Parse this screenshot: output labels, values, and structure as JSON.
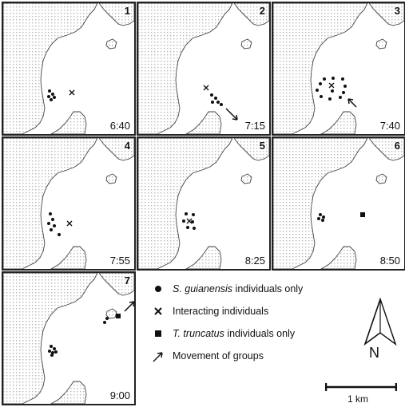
{
  "colors": {
    "land": "#b8b8b8",
    "coast": "#444444",
    "marks": "#111111",
    "border": "#222222"
  },
  "panels": [
    {
      "number": "1",
      "time": "6:40",
      "sotalia": [
        [
          58,
          110
        ],
        [
          62,
          114
        ],
        [
          57,
          117
        ],
        [
          64,
          118
        ],
        [
          60,
          121
        ]
      ],
      "interacting": [
        [
          86,
          112
        ]
      ],
      "tursiops": [],
      "arrow": null
    },
    {
      "number": "2",
      "time": "7:15",
      "sotalia": [
        [
          92,
          115
        ],
        [
          97,
          119
        ],
        [
          93,
          124
        ],
        [
          100,
          124
        ],
        [
          104,
          127
        ]
      ],
      "interacting": [
        [
          85,
          106
        ]
      ],
      "tursiops": [],
      "arrow": "down-right"
    },
    {
      "number": "3",
      "time": "7:40",
      "sotalia": [
        [
          64,
          95
        ],
        [
          75,
          94
        ],
        [
          87,
          95
        ],
        [
          59,
          101
        ],
        [
          90,
          104
        ],
        [
          55,
          109
        ],
        [
          74,
          110
        ],
        [
          88,
          112
        ],
        [
          60,
          117
        ],
        [
          71,
          120
        ],
        [
          84,
          118
        ]
      ],
      "interacting": [
        [
          73,
          103
        ]
      ],
      "tursiops": [],
      "arrow": "up-left"
    },
    {
      "number": "4",
      "time": "7:55",
      "sotalia": [
        [
          59,
          95
        ],
        [
          62,
          102
        ],
        [
          57,
          107
        ],
        [
          64,
          110
        ],
        [
          60,
          115
        ],
        [
          70,
          121
        ]
      ],
      "interacting": [
        [
          83,
          107
        ]
      ],
      "tursiops": [],
      "arrow": null
    },
    {
      "number": "5",
      "time": "8:25",
      "sotalia": [
        [
          60,
          95
        ],
        [
          69,
          96
        ],
        [
          57,
          104
        ],
        [
          68,
          105
        ],
        [
          62,
          112
        ],
        [
          70,
          113
        ]
      ],
      "interacting": [
        [
          64,
          104
        ]
      ],
      "tursiops": [],
      "arrow": null
    },
    {
      "number": "6",
      "time": "8:50",
      "sotalia": [
        [
          59,
          96
        ],
        [
          63,
          99
        ],
        [
          57,
          101
        ],
        [
          62,
          103
        ]
      ],
      "interacting": [],
      "tursiops": [
        [
          112,
          96
        ]
      ],
      "arrow": null
    },
    {
      "number": "7",
      "time": "9:00",
      "sotalia": [
        [
          60,
          92
        ],
        [
          64,
          95
        ],
        [
          58,
          98
        ],
        [
          62,
          100
        ],
        [
          66,
          99
        ],
        [
          61,
          103
        ]
      ],
      "interacting": [],
      "tursiops": [
        [
          144,
          54
        ]
      ],
      "extra_sotalia": [
        [
          130,
          57
        ],
        [
          127,
          62
        ]
      ],
      "arrow": "up-right"
    }
  ],
  "legend": {
    "items": [
      {
        "symbol": "dot",
        "label_italic": "S. guianensis",
        "label_rest": " individuals only"
      },
      {
        "symbol": "cross",
        "label_italic": "",
        "label_rest": "Interacting individuals"
      },
      {
        "symbol": "square",
        "label_italic": "T. truncatus",
        "label_rest": " individuals only"
      },
      {
        "symbol": "arrow",
        "label_italic": "",
        "label_rest": "Movement of groups"
      }
    ],
    "north_label": "N",
    "scale_label": "1 km"
  }
}
